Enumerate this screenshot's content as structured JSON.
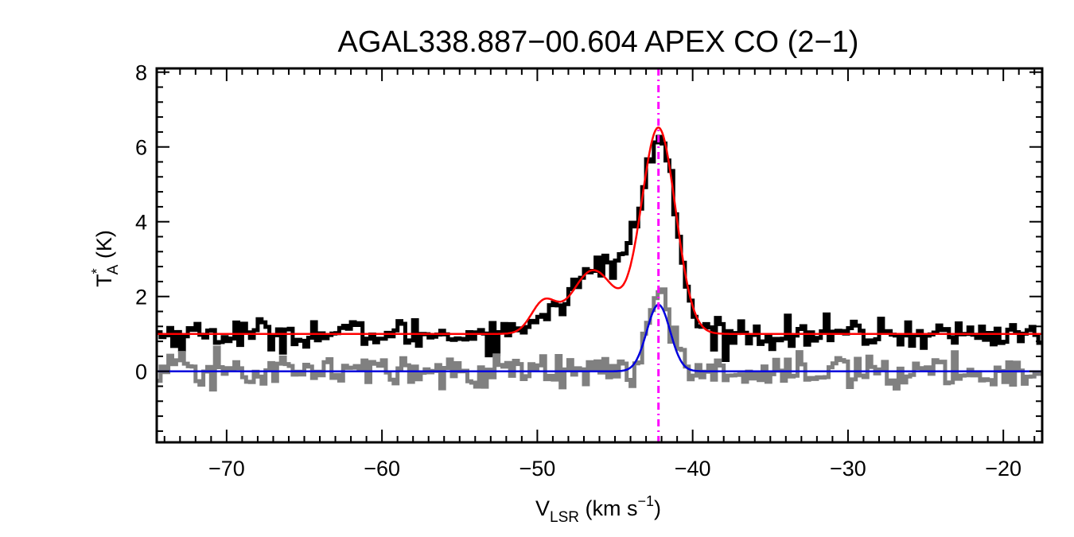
{
  "chart_data": {
    "type": "line",
    "title": "AGAL338.887−00.604   APEX CO (2−1)",
    "xlabel": {
      "main": "V",
      "sub": "LSR",
      "unit": " (km s",
      "sup": "−1",
      "close": ")"
    },
    "ylabel": {
      "main": "T",
      "sup": "*",
      "sub": "A",
      "unit": " (K)"
    },
    "xlim": [
      -74.5,
      -17.5
    ],
    "ylim": [
      -1.9,
      8.1
    ],
    "xticks": [
      -70,
      -60,
      -50,
      -40,
      -30,
      -20
    ],
    "xtick_labels": [
      "−70",
      "−60",
      "−50",
      "−40",
      "−30",
      "−20"
    ],
    "yticks": [
      0,
      2,
      4,
      6,
      8
    ],
    "ytick_labels": [
      "0",
      "2",
      "4",
      "6",
      "8"
    ],
    "vline": {
      "x": -42.2,
      "color": "#ff00ff",
      "style": "dash-dot"
    },
    "series": [
      {
        "kind": "observed-histogram",
        "color": "#000000",
        "baseline": 1.0,
        "components": [
          {
            "amp": 0.45,
            "center": -49.5,
            "width": 0.9
          },
          {
            "amp": 1.55,
            "center": -46.3,
            "width": 1.6
          },
          {
            "amp": 1.4,
            "center": -43.6,
            "width": 1.3
          },
          {
            "amp": 4.5,
            "center": -42.0,
            "width": 1.0
          }
        ],
        "noise": 0.2
      },
      {
        "kind": "observed-histogram",
        "color": "#808080",
        "baseline": 0.0,
        "components": [
          {
            "amp": 1.9,
            "center": -42.2,
            "width": 0.8
          }
        ],
        "noise": 0.22
      },
      {
        "kind": "gaussian-fit",
        "color": "#ff0000",
        "baseline": 1.0,
        "components": [
          {
            "amp": 0.8,
            "center": -49.6,
            "width": 0.8
          },
          {
            "amp": 1.7,
            "center": -46.4,
            "width": 1.4
          },
          {
            "amp": 5.5,
            "center": -42.2,
            "width": 1.1
          }
        ]
      },
      {
        "kind": "gaussian-fit",
        "color": "#0000dd",
        "baseline": 0.0,
        "components": [
          {
            "amp": 1.78,
            "center": -42.2,
            "width": 0.75
          }
        ]
      }
    ]
  }
}
